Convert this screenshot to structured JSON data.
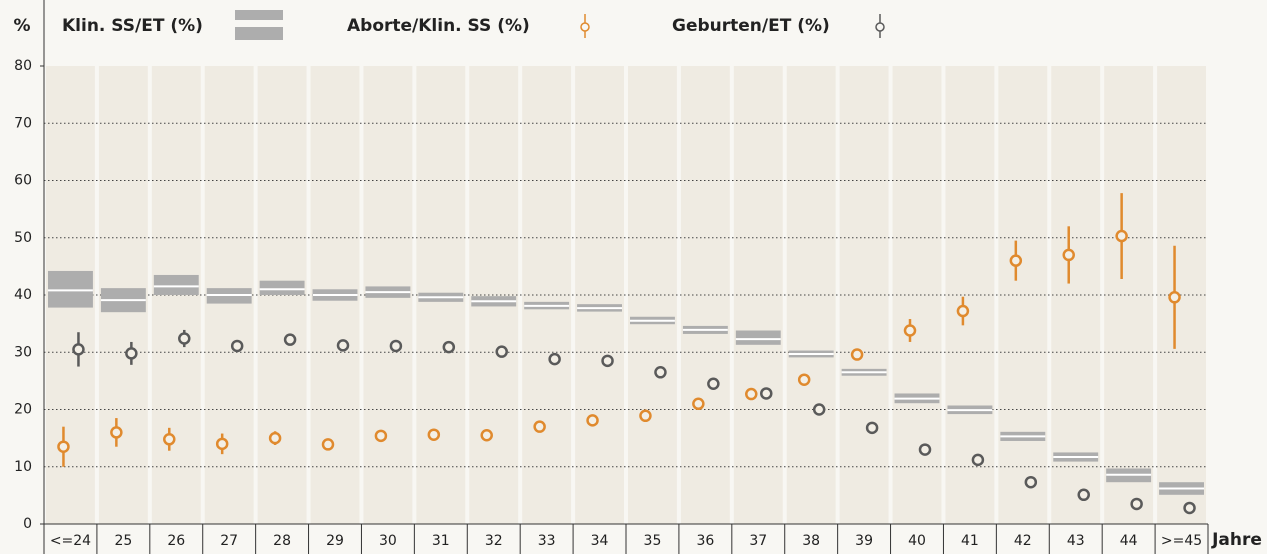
{
  "chart_data": {
    "type": "range-errorbar",
    "y_label": "%",
    "x_label": "Jahre",
    "categories": [
      "<=24",
      "25",
      "26",
      "27",
      "28",
      "29",
      "30",
      "31",
      "32",
      "33",
      "34",
      "35",
      "36",
      "37",
      "38",
      "39",
      "40",
      "41",
      "42",
      "43",
      "44",
      ">=45"
    ],
    "ylim": [
      0,
      80
    ],
    "yticks": [
      0,
      10,
      20,
      30,
      40,
      50,
      60,
      70,
      80
    ],
    "grid": true,
    "series": [
      {
        "name": "Klin. SS/ET (%)",
        "kind": "range",
        "color": "#adadad",
        "values": [
          40.8,
          39.1,
          41.5,
          40,
          41,
          40,
          40.5,
          39.6,
          38.9,
          38.1,
          37.7,
          35.5,
          33.9,
          32.3,
          29.7,
          26.5,
          21.9,
          19.9,
          15.3,
          11.7,
          8.6,
          6.2
        ],
        "low": [
          37.8,
          37,
          40,
          38.5,
          40,
          39,
          39.5,
          38.8,
          38,
          37.5,
          37.1,
          34.9,
          33.2,
          31.3,
          29.1,
          25.9,
          21.1,
          19.2,
          14.5,
          10.9,
          7.3,
          5.1
        ],
        "high": [
          44.2,
          41.2,
          43.5,
          41.2,
          42.5,
          41,
          41.5,
          40.4,
          39.8,
          38.8,
          38.4,
          36.2,
          34.6,
          33.8,
          30.3,
          27.1,
          22.8,
          20.7,
          16.1,
          12.5,
          9.7,
          7.3
        ]
      },
      {
        "name": "Aborte/Klin. SS (%)",
        "kind": "point",
        "color": "#e08a2e",
        "values": [
          13.5,
          16,
          14.8,
          14,
          15,
          13.9,
          15.4,
          15.6,
          15.5,
          17,
          18.1,
          18.9,
          21,
          22.7,
          25.2,
          29.6,
          33.8,
          37.2,
          46,
          47,
          50.3,
          39.6
        ],
        "errors": [
          3.5,
          2.5,
          2,
          1.8,
          1.2,
          0.8,
          0.6,
          0.6,
          0.6,
          0.6,
          0.6,
          0.6,
          0.6,
          0.6,
          1,
          0.8,
          2,
          2.5,
          3.5,
          5,
          7.5,
          9
        ]
      },
      {
        "name": "Geburten/ET (%)",
        "kind": "point",
        "color": "#5a5a5a",
        "values": [
          30.5,
          29.8,
          32.4,
          31.1,
          32.2,
          31.2,
          31.1,
          30.9,
          30.1,
          28.8,
          28.5,
          26.5,
          24.5,
          22.8,
          20,
          16.8,
          13,
          11.2,
          7.3,
          5.1,
          3.5,
          2.8
        ],
        "errors": [
          3,
          2,
          1.5,
          1,
          0.6,
          0.5,
          0.5,
          0.5,
          0.5,
          0.5,
          0.5,
          0.5,
          0.5,
          0.5,
          0.5,
          0.5,
          0.5,
          0.5,
          0.5,
          0.5,
          0.5,
          0.5
        ]
      }
    ]
  }
}
